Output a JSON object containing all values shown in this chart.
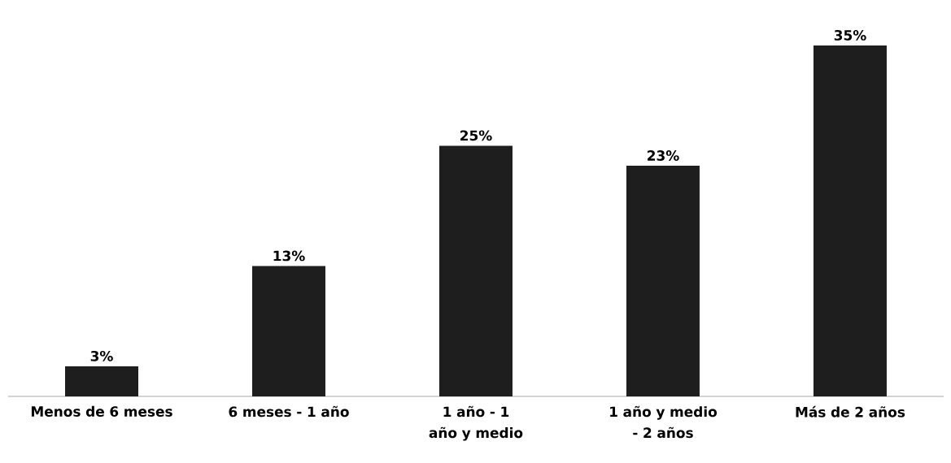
{
  "chart_data": {
    "type": "bar",
    "categories": [
      "Menos de 6 meses",
      "6 meses - 1 año",
      "1 año - 1 año y medio",
      "1 año y medio - 2 años",
      "Más de 2 años"
    ],
    "values": [
      3,
      13,
      25,
      23,
      35
    ],
    "value_labels": [
      "3%",
      "13%",
      "25%",
      "23%",
      "35%"
    ],
    "color": "#1e1e1e"
  }
}
